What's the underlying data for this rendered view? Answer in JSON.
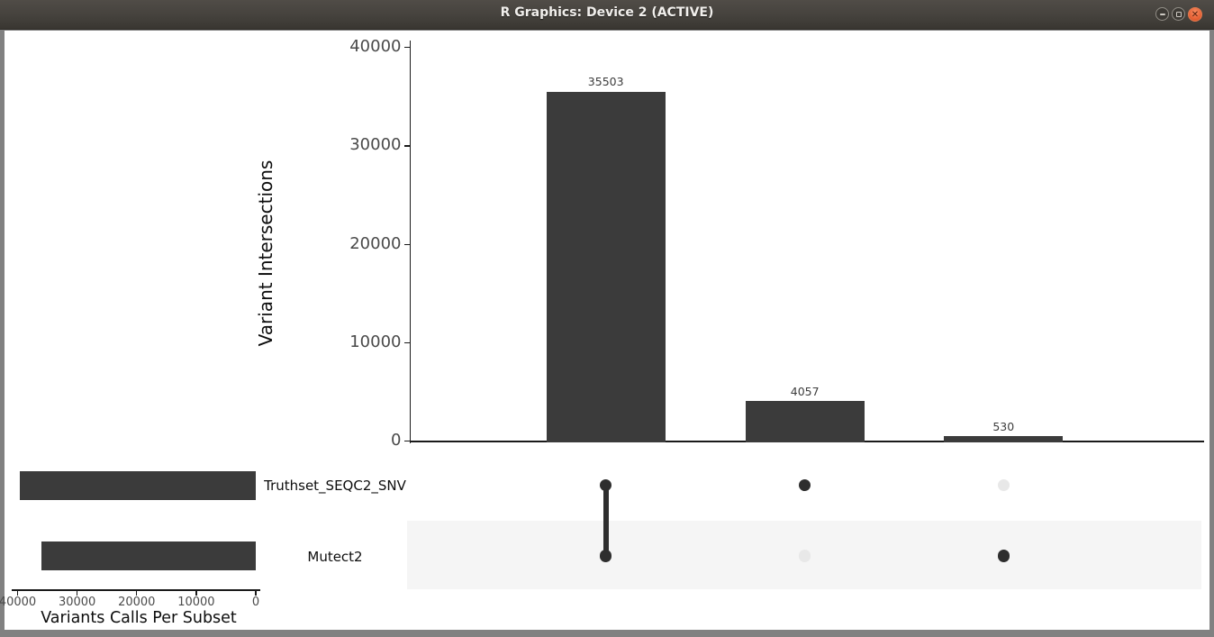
{
  "window": {
    "title": "R Graphics: Device 2 (ACTIVE)",
    "controls": [
      {
        "name": "minimize",
        "glyph": ""
      },
      {
        "name": "maximize",
        "glyph": ""
      },
      {
        "name": "close",
        "glyph": "✕"
      }
    ]
  },
  "chart_data": {
    "type": "upset",
    "intersection_bars": {
      "type": "bar",
      "ylabel": "Variant Intersections",
      "ylim": [
        0,
        40000
      ],
      "yticks": [
        0,
        10000,
        20000,
        30000,
        40000
      ],
      "values": [
        35503,
        4057,
        530
      ],
      "bar_labels": [
        "35503",
        "4057",
        "530"
      ],
      "memberships": [
        [
          "Truthset_SEQC2_SNV",
          "Mutect2"
        ],
        [
          "Truthset_SEQC2_SNV"
        ],
        [
          "Mutect2"
        ]
      ]
    },
    "set_size_bars": {
      "type": "bar",
      "orientation": "horizontal",
      "axis_reversed": true,
      "xlabel": "Variants Calls Per Subset",
      "xlim": [
        40000,
        0
      ],
      "xticks": [
        40000,
        30000,
        20000,
        10000,
        0
      ],
      "categories": [
        "Truthset_SEQC2_SNV",
        "Mutect2"
      ],
      "values": [
        39560,
        36033
      ]
    },
    "matrix": {
      "rows": [
        "Truthset_SEQC2_SNV",
        "Mutect2"
      ],
      "columns": [
        {
          "dots": [
            true,
            true
          ]
        },
        {
          "dots": [
            true,
            false
          ]
        },
        {
          "dots": [
            false,
            true
          ]
        }
      ]
    },
    "colors": {
      "bar": "#3b3b3b",
      "dot_active": "#2e2e2e",
      "dot_inactive": "#e8e8e8",
      "row_stripe": "#f5f5f5",
      "axis_line": "#1a1a1a",
      "axis_text": "#4a4a4a",
      "value_text": "#3d3d3d",
      "close_button": "#e8643c"
    }
  }
}
